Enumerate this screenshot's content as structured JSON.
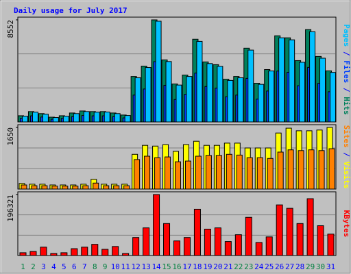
{
  "title": "Daily usage for July 2017",
  "chart_data": [
    {
      "type": "bar",
      "ylim": [
        0,
        8552
      ],
      "yticks": [
        8552
      ],
      "series": [
        {
          "name": "Hits",
          "color": "#00805c",
          "values": [
            520,
            870,
            700,
            400,
            520,
            750,
            920,
            870,
            870,
            750,
            580,
            3810,
            4680,
            8552,
            5200,
            3180,
            3930,
            6930,
            5030,
            4800,
            3580,
            3810,
            6180,
            3240,
            4390,
            7220,
            7050,
            5140,
            7740,
            5490,
            4280
          ]
        },
        {
          "name": "Files",
          "color": "#0040ff",
          "values": [
            300,
            510,
            410,
            230,
            300,
            440,
            540,
            510,
            510,
            440,
            340,
            2250,
            2760,
            5050,
            3070,
            1880,
            2320,
            4090,
            2970,
            2830,
            2110,
            2250,
            3650,
            1910,
            2590,
            4260,
            4160,
            3030,
            4570,
            3240,
            2530
          ]
        },
        {
          "name": "Pages",
          "color": "#00c0ff",
          "values": [
            480,
            820,
            650,
            370,
            480,
            700,
            870,
            820,
            830,
            700,
            540,
            3700,
            4560,
            8440,
            5060,
            3090,
            3810,
            6750,
            4890,
            4660,
            3480,
            3700,
            6020,
            3150,
            4270,
            7050,
            6880,
            5000,
            7560,
            5340,
            4150
          ]
        }
      ]
    },
    {
      "type": "bar",
      "ylim": [
        0,
        1650
      ],
      "yticks": [
        1650
      ],
      "series": [
        {
          "name": "Visits",
          "color": "#ffff00",
          "values": [
            150,
            130,
            130,
            110,
            110,
            110,
            130,
            260,
            130,
            130,
            130,
            930,
            1170,
            1150,
            1190,
            1010,
            1190,
            1280,
            1170,
            1170,
            1230,
            1230,
            1100,
            1100,
            1100,
            1500,
            1630,
            1560,
            1560,
            1580,
            1650
          ]
        },
        {
          "name": "Sites",
          "color": "#ff8000",
          "values": [
            110,
            90,
            90,
            80,
            80,
            80,
            90,
            160,
            90,
            90,
            90,
            790,
            880,
            840,
            860,
            730,
            750,
            880,
            900,
            900,
            930,
            910,
            840,
            840,
            820,
            990,
            1050,
            1030,
            1050,
            1030,
            1080
          ]
        }
      ]
    },
    {
      "type": "bar",
      "ylim": [
        0,
        196321
      ],
      "yticks": [
        196321
      ],
      "categories": [
        "1",
        "2",
        "3",
        "4",
        "5",
        "6",
        "7",
        "8",
        "9",
        "10",
        "11",
        "12",
        "13",
        "14",
        "15",
        "16",
        "17",
        "18",
        "19",
        "20",
        "21",
        "22",
        "23",
        "24",
        "25",
        "26",
        "27",
        "28",
        "29",
        "30",
        "31"
      ],
      "label_colors": [
        "#008040",
        "#008040",
        "#0000ff",
        "#0000ff",
        "#0000ff",
        "#0000ff",
        "#0000ff",
        "#008040",
        "#008040",
        "#0000ff",
        "#0000ff",
        "#0000ff",
        "#0000ff",
        "#0000ff",
        "#008040",
        "#008040",
        "#0000ff",
        "#0000ff",
        "#0000ff",
        "#0000ff",
        "#0000ff",
        "#008040",
        "#008040",
        "#0000ff",
        "#0000ff",
        "#0000ff",
        "#0000ff",
        "#0000ff",
        "#008040",
        "#008040",
        "#0000ff"
      ],
      "series": [
        {
          "name": "KBytes",
          "color": "#ff0000",
          "values": [
            9000,
            13000,
            27000,
            6500,
            9000,
            22000,
            27000,
            36000,
            20000,
            29000,
            6500,
            58000,
            89000,
            196321,
            103000,
            47000,
            58000,
            149000,
            85000,
            89000,
            45000,
            67000,
            123000,
            42000,
            60000,
            163000,
            152000,
            103000,
            183000,
            96000,
            69000
          ]
        }
      ]
    }
  ]
}
